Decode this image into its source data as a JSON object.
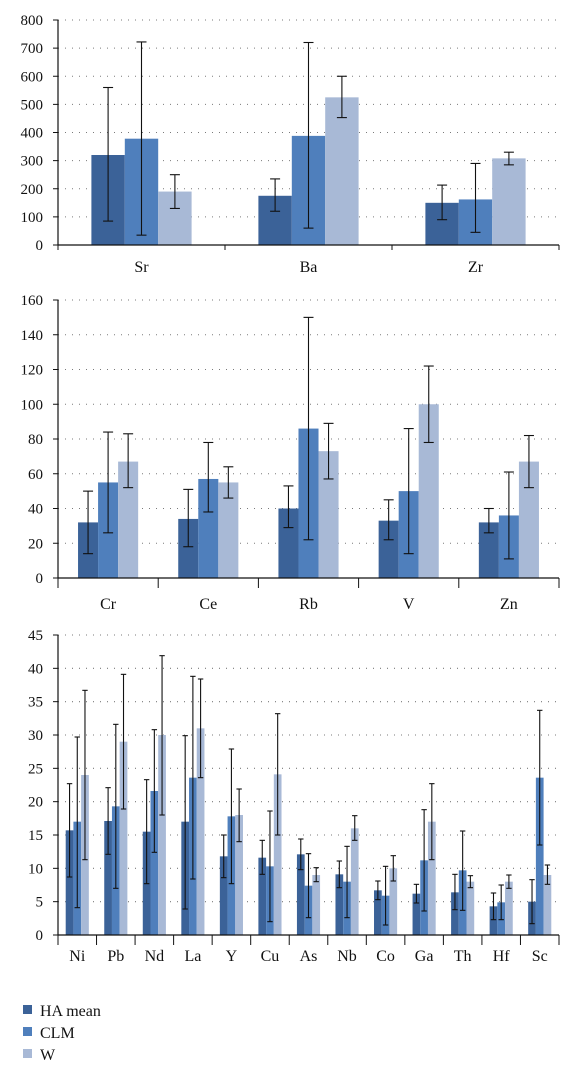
{
  "series_style": [
    {
      "color": "#3b6298"
    },
    {
      "color": "#4f7fbc"
    },
    {
      "color": "#a8b9d6"
    }
  ],
  "legend": [
    {
      "label": "HA mean",
      "color": "#3b6298"
    },
    {
      "label": "CLM",
      "color": "#4f7fbc"
    },
    {
      "label": "W",
      "color": "#a8b9d6"
    }
  ],
  "chart_data": [
    {
      "type": "bar",
      "grid": "dotted-horizontal",
      "ylim": [
        0,
        800
      ],
      "yticks": [
        0,
        100,
        200,
        300,
        400,
        500,
        600,
        700,
        800
      ],
      "categories": [
        "Sr",
        "Ba",
        "Zr"
      ],
      "series": [
        {
          "name": "HA mean",
          "values": [
            320,
            175,
            150
          ],
          "err_low": [
            85,
            120,
            90
          ],
          "err_high": [
            560,
            235,
            213
          ]
        },
        {
          "name": "CLM",
          "values": [
            378,
            388,
            162
          ],
          "err_low": [
            35,
            60,
            45
          ],
          "err_high": [
            722,
            720,
            290
          ]
        },
        {
          "name": "W",
          "values": [
            190,
            525,
            308
          ],
          "err_low": [
            130,
            453,
            285
          ],
          "err_high": [
            250,
            600,
            330
          ]
        }
      ]
    },
    {
      "type": "bar",
      "grid": "dotted-horizontal",
      "ylim": [
        0,
        160
      ],
      "yticks": [
        0,
        20,
        40,
        60,
        80,
        100,
        120,
        140,
        160
      ],
      "categories": [
        "Cr",
        "Ce",
        "Rb",
        "V",
        "Zn"
      ],
      "series": [
        {
          "name": "HA mean",
          "values": [
            32,
            34,
            40,
            33,
            32
          ],
          "err_low": [
            14,
            18,
            29,
            22,
            26
          ],
          "err_high": [
            50,
            51,
            53,
            45,
            40
          ]
        },
        {
          "name": "CLM",
          "values": [
            55,
            57,
            86,
            50,
            36
          ],
          "err_low": [
            26,
            38,
            22,
            14,
            11
          ],
          "err_high": [
            84,
            78,
            150,
            86,
            61
          ]
        },
        {
          "name": "W",
          "values": [
            67,
            55,
            73,
            100,
            67
          ],
          "err_low": [
            52,
            46,
            57,
            78,
            52
          ],
          "err_high": [
            83,
            64,
            89,
            122,
            82
          ]
        }
      ]
    },
    {
      "type": "bar",
      "grid": "dotted-horizontal",
      "ylim": [
        0,
        45
      ],
      "yticks": [
        0,
        5,
        10,
        15,
        20,
        25,
        30,
        35,
        40,
        45
      ],
      "categories": [
        "Ni",
        "Pb",
        "Nd",
        "La",
        "Y",
        "Cu",
        "As",
        "Nb",
        "Co",
        "Ga",
        "Th",
        "Hf",
        "Sc"
      ],
      "series": [
        {
          "name": "HA mean",
          "values": [
            15.7,
            17.1,
            15.5,
            17.0,
            11.8,
            11.6,
            12.1,
            9.1,
            6.7,
            6.2,
            6.4,
            4.3,
            5.0
          ],
          "err_low": [
            8.7,
            12.1,
            7.7,
            3.9,
            8.6,
            9.1,
            9.8,
            7.1,
            5.3,
            4.8,
            3.8,
            2.3,
            1.7
          ],
          "err_high": [
            22.7,
            22.1,
            23.3,
            29.9,
            15.0,
            14.2,
            14.4,
            11.1,
            8.1,
            7.6,
            9.1,
            6.3,
            8.3
          ]
        },
        {
          "name": "CLM",
          "values": [
            17.0,
            19.3,
            21.6,
            23.6,
            17.8,
            10.3,
            7.4,
            8.0,
            5.9,
            11.2,
            9.7,
            4.9,
            23.6
          ],
          "err_low": [
            4.1,
            7.0,
            12.4,
            8.4,
            7.7,
            2.0,
            2.6,
            2.6,
            1.5,
            3.6,
            3.7,
            2.3,
            13.5
          ],
          "err_high": [
            29.7,
            31.6,
            30.8,
            38.8,
            27.9,
            18.6,
            12.2,
            13.3,
            10.3,
            18.8,
            15.6,
            7.5,
            33.7
          ]
        },
        {
          "name": "W",
          "values": [
            24.0,
            29.0,
            30.0,
            31.0,
            18.0,
            24.1,
            9.0,
            16.0,
            10.0,
            17.0,
            8.0,
            8.0,
            9.0
          ],
          "err_low": [
            11.3,
            18.9,
            18.0,
            23.6,
            14.0,
            15.0,
            8.0,
            14.2,
            8.1,
            11.3,
            7.1,
            7.0,
            7.6
          ],
          "err_high": [
            36.7,
            39.1,
            41.9,
            38.4,
            21.9,
            33.2,
            10.1,
            17.9,
            11.9,
            22.7,
            8.9,
            9.0,
            10.5
          ]
        }
      ]
    }
  ]
}
